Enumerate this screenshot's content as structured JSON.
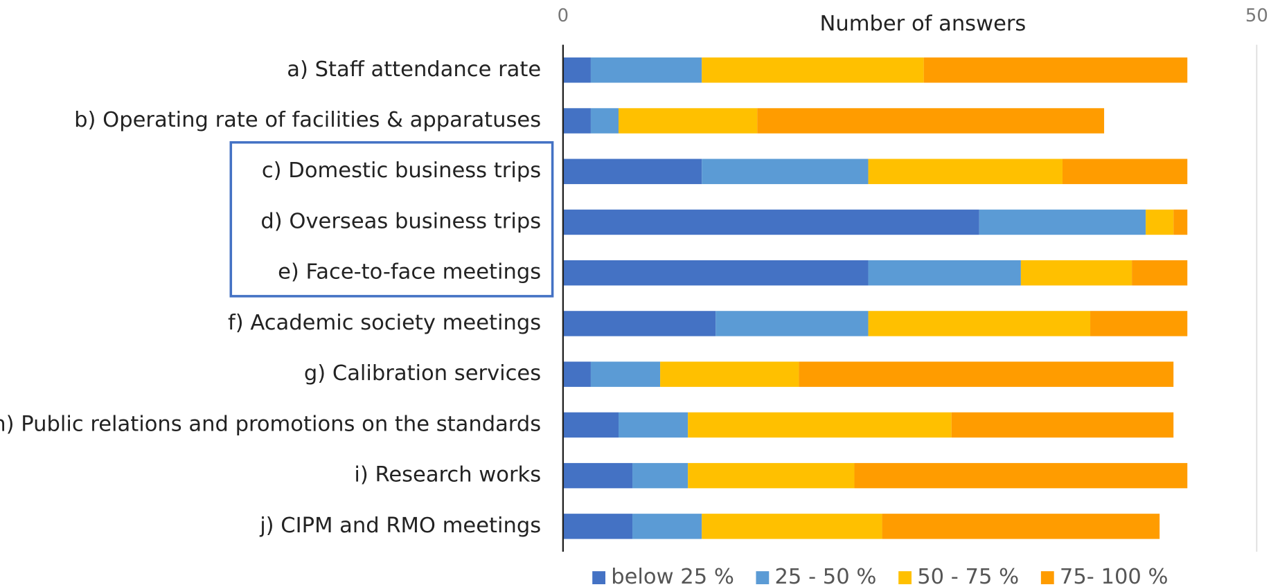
{
  "chart_data": {
    "type": "stacked-bar-horizontal",
    "x_label": "Number of answers",
    "categories": [
      "a) Staff attendance rate",
      "b) Operating rate of facilities & apparatuses",
      "c) Domestic business trips",
      "d) Overseas business trips",
      "e) Face-to-face meetings",
      "f) Academic society meetings",
      "g) Calibration services",
      "h) Public relations and promotions on the standards",
      "i) Research works",
      "j) CIPM and RMO meetings"
    ],
    "series": [
      {
        "name": "below 25 %",
        "color": "#4472c4",
        "values": [
          2,
          2,
          10,
          30,
          22,
          11,
          2,
          4,
          5,
          5
        ]
      },
      {
        "name": "25 - 50 %",
        "color": "#5b9bd5",
        "values": [
          8,
          2,
          12,
          12,
          11,
          11,
          5,
          5,
          4,
          5
        ]
      },
      {
        "name": "50 - 75 %",
        "color": "#ffc000",
        "values": [
          16,
          10,
          14,
          2,
          8,
          16,
          10,
          19,
          12,
          13
        ]
      },
      {
        "name": "75- 100 %",
        "color": "#ff9c00",
        "values": [
          19,
          25,
          9,
          1,
          4,
          7,
          27,
          16,
          24,
          20
        ]
      }
    ],
    "xlim": [
      0,
      50
    ],
    "xticks": [
      0,
      50
    ],
    "legend": "bottom"
  }
}
